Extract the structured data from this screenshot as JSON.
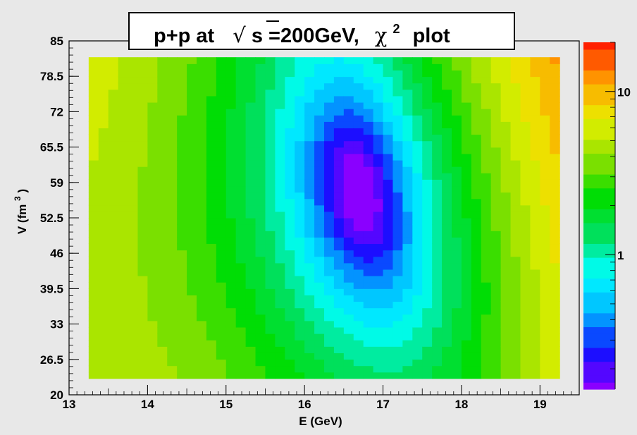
{
  "chart_data": {
    "type": "heatmap",
    "title": {
      "prefix": "p+p at",
      "sqrt_symbol": "√",
      "sqrt_var": "s",
      "energy": "=200GeV,",
      "chi": "χ",
      "chi_power": "2",
      "suffix": "plot"
    },
    "xlabel": "E (GeV)",
    "ylabel": {
      "text": "V (fm",
      "power": "3",
      "close": ")"
    },
    "xlim": [
      13,
      19.5
    ],
    "ylim": [
      20,
      85
    ],
    "data_x_range": [
      13.25,
      19.25
    ],
    "data_y_range": [
      23,
      82
    ],
    "x_ticks": [
      "13",
      "14",
      "15",
      "16",
      "17",
      "18",
      "19"
    ],
    "y_ticks": [
      "20",
      "26.5",
      "33",
      "39.5",
      "46",
      "52.5",
      "59",
      "65.5",
      "72",
      "78.5",
      "85"
    ],
    "z_scale": "log",
    "zlim": [
      0.15,
      20
    ],
    "z_ticks": [
      "1",
      "10"
    ],
    "minimum": {
      "E": 16.7,
      "V": 57
    },
    "colormap": [
      "#8a00ff",
      "#1010ff",
      "#00b4ff",
      "#00ffff",
      "#00e060",
      "#00dd00",
      "#90e000",
      "#e8f000",
      "#ffa000",
      "#ff2000"
    ],
    "grid": false
  },
  "frame": {
    "background": "#e8e8e8",
    "title_box": "#ffffff"
  }
}
